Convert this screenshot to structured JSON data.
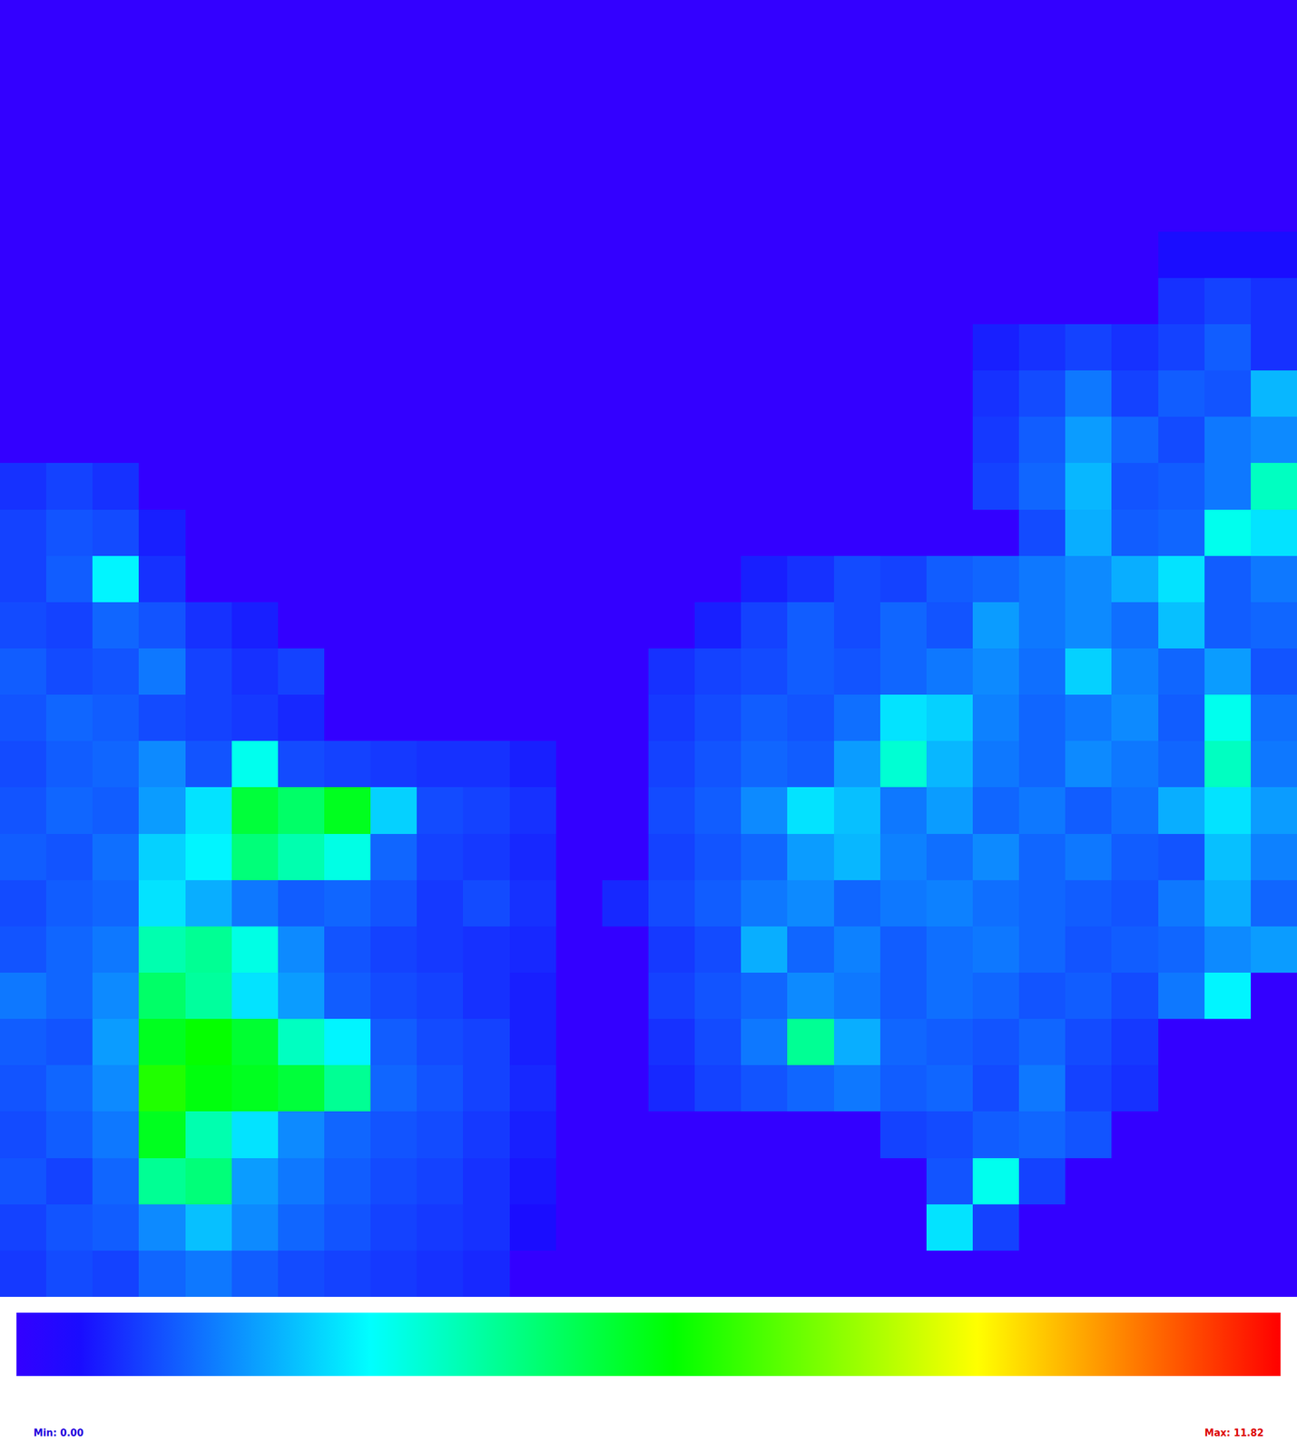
{
  "chart_data": {
    "type": "heatmap",
    "tick_labels": false,
    "colorbar": {
      "range": [
        0,
        11.82
      ],
      "min_label": "Min: 0.00",
      "max_label": "Max: 11.82"
    },
    "z": [
      [
        0,
        0,
        0,
        0,
        0,
        0,
        0,
        0,
        0,
        0,
        0,
        0,
        0,
        0,
        0,
        0,
        0,
        0,
        0,
        0,
        0,
        0,
        0,
        0,
        0,
        0,
        0,
        0
      ],
      [
        0,
        0,
        0,
        0,
        0,
        0,
        0,
        0,
        0,
        0,
        0,
        0,
        0,
        0,
        0,
        0,
        0,
        0,
        0,
        0,
        0,
        0,
        0,
        0,
        0,
        0,
        0,
        0
      ],
      [
        0,
        0,
        0,
        0,
        0,
        0,
        0,
        0,
        0,
        0,
        0,
        0,
        0,
        0,
        0,
        0,
        0,
        0,
        0,
        0,
        0,
        0,
        0,
        0,
        0,
        0,
        0,
        0
      ],
      [
        0,
        0,
        0,
        0,
        0,
        0,
        0,
        0,
        0,
        0,
        0,
        0,
        0,
        0,
        0,
        0,
        0,
        0,
        0,
        0,
        0,
        0,
        0,
        0,
        0,
        0,
        0,
        0
      ],
      [
        0,
        0,
        0,
        0,
        0,
        0,
        0,
        0,
        0,
        0,
        0,
        0,
        0,
        0,
        0,
        0,
        0,
        0,
        0,
        0,
        0,
        0,
        0,
        0,
        0,
        0,
        0,
        0
      ],
      [
        0,
        0,
        0,
        0,
        0,
        0,
        0,
        0,
        0,
        0,
        0,
        0,
        0,
        0,
        0,
        0,
        0,
        0,
        0,
        0,
        0,
        0,
        0,
        0,
        0,
        0.6,
        0.6,
        0.6
      ],
      [
        0,
        0,
        0,
        0,
        0,
        0,
        0,
        0,
        0,
        0,
        0,
        0,
        0,
        0,
        0,
        0,
        0,
        0,
        0,
        0,
        0,
        0,
        0,
        0,
        0,
        1.0,
        1.2,
        1.0
      ],
      [
        0,
        0,
        0,
        0,
        0,
        0,
        0,
        0,
        0,
        0,
        0,
        0,
        0,
        0,
        0,
        0,
        0,
        0,
        0,
        0,
        0,
        0.8,
        1.0,
        1.2,
        1.0,
        1.2,
        1.5,
        1.0
      ],
      [
        0,
        0,
        0,
        0,
        0,
        0,
        0,
        0,
        0,
        0,
        0,
        0,
        0,
        0,
        0,
        0,
        0,
        0,
        0,
        0,
        0,
        1.0,
        1.3,
        1.8,
        1.2,
        1.5,
        1.4,
        2.5
      ],
      [
        0,
        0,
        0,
        0,
        0,
        0,
        0,
        0,
        0,
        0,
        0,
        0,
        0,
        0,
        0,
        0,
        0,
        0,
        0,
        0,
        0,
        1.1,
        1.5,
        2.2,
        1.6,
        1.3,
        1.8,
        2.0
      ],
      [
        1.0,
        1.2,
        1.0,
        0,
        0,
        0,
        0,
        0,
        0,
        0,
        0,
        0,
        0,
        0,
        0,
        0,
        0,
        0,
        0,
        0,
        0,
        1.2,
        1.6,
        2.5,
        1.4,
        1.5,
        1.8,
        4.0
      ],
      [
        1.2,
        1.4,
        1.3,
        0.8,
        0,
        0,
        0,
        0,
        0,
        0,
        0,
        0,
        0,
        0,
        0,
        0,
        0,
        0,
        0,
        0,
        0,
        0,
        1.3,
        2.4,
        1.5,
        1.6,
        3.5,
        3.0
      ],
      [
        1.2,
        1.5,
        3.2,
        1.0,
        0,
        0,
        0,
        0,
        0,
        0,
        0,
        0,
        0,
        0,
        0,
        0,
        0.8,
        1.0,
        1.3,
        1.2,
        1.5,
        1.6,
        1.8,
        2.0,
        2.4,
        3.0,
        1.5,
        1.8
      ],
      [
        1.3,
        1.2,
        1.6,
        1.4,
        1.0,
        0.8,
        0,
        0,
        0,
        0,
        0,
        0,
        0,
        0,
        0,
        0.8,
        1.2,
        1.5,
        1.3,
        1.6,
        1.4,
        2.2,
        1.8,
        2.0,
        1.7,
        2.6,
        1.5,
        1.6
      ],
      [
        1.5,
        1.3,
        1.4,
        1.8,
        1.2,
        1.0,
        1.2,
        0,
        0,
        0,
        0,
        0,
        0,
        0,
        1.0,
        1.2,
        1.3,
        1.5,
        1.4,
        1.6,
        1.8,
        2.0,
        1.7,
        2.8,
        1.9,
        1.6,
        2.2,
        1.4
      ],
      [
        1.4,
        1.6,
        1.5,
        1.3,
        1.2,
        1.1,
        0.9,
        0,
        0,
        0,
        0,
        0,
        0,
        0,
        1.1,
        1.3,
        1.5,
        1.4,
        1.7,
        3.0,
        2.8,
        1.9,
        1.6,
        1.8,
        2.0,
        1.5,
        3.5,
        1.7
      ],
      [
        1.3,
        1.5,
        1.6,
        2.0,
        1.4,
        3.5,
        1.3,
        1.2,
        1.1,
        1.0,
        1.0,
        0.8,
        0,
        0,
        1.2,
        1.4,
        1.6,
        1.5,
        2.2,
        3.8,
        2.5,
        1.8,
        1.6,
        2.0,
        1.8,
        1.6,
        4.0,
        1.8
      ],
      [
        1.4,
        1.6,
        1.5,
        2.2,
        3.0,
        5.5,
        5.0,
        5.8,
        2.8,
        1.3,
        1.2,
        1.0,
        0,
        0,
        1.3,
        1.5,
        2.0,
        3.0,
        2.6,
        1.8,
        2.2,
        1.6,
        1.8,
        1.5,
        1.7,
        2.4,
        3.0,
        2.2
      ],
      [
        1.5,
        1.4,
        1.7,
        2.8,
        3.2,
        4.8,
        4.2,
        3.6,
        1.6,
        1.2,
        1.1,
        0.9,
        0,
        0,
        1.2,
        1.4,
        1.6,
        2.2,
        2.5,
        1.9,
        1.7,
        2.0,
        1.6,
        1.8,
        1.5,
        1.4,
        2.6,
        1.9
      ],
      [
        1.3,
        1.5,
        1.6,
        3.0,
        2.4,
        1.8,
        1.5,
        1.6,
        1.4,
        1.1,
        1.3,
        1.0,
        0,
        0.9,
        1.3,
        1.5,
        1.8,
        2.0,
        1.6,
        1.8,
        1.9,
        1.7,
        1.6,
        1.5,
        1.4,
        1.8,
        2.4,
        1.6
      ],
      [
        1.4,
        1.6,
        1.8,
        4.2,
        4.5,
        3.6,
        2.0,
        1.4,
        1.2,
        1.1,
        1.0,
        0.9,
        0,
        0,
        1.1,
        1.3,
        2.4,
        1.6,
        1.9,
        1.5,
        1.7,
        1.8,
        1.6,
        1.4,
        1.5,
        1.6,
        2.0,
        2.2
      ],
      [
        1.8,
        1.6,
        2.0,
        5.0,
        4.4,
        3.0,
        2.2,
        1.5,
        1.3,
        1.2,
        1.0,
        0.8,
        0,
        0,
        1.2,
        1.4,
        1.6,
        2.0,
        1.8,
        1.5,
        1.7,
        1.6,
        1.4,
        1.5,
        1.3,
        1.8,
        3.2,
        0
      ],
      [
        1.5,
        1.4,
        2.2,
        5.8,
        6.2,
        5.6,
        4.0,
        3.2,
        1.5,
        1.3,
        1.2,
        0.8,
        0,
        0,
        1.0,
        1.3,
        1.8,
        4.5,
        2.4,
        1.6,
        1.5,
        1.4,
        1.6,
        1.3,
        1.1,
        0,
        0,
        0
      ],
      [
        1.4,
        1.6,
        2.0,
        6.5,
        6.0,
        5.8,
        5.5,
        4.5,
        1.6,
        1.4,
        1.2,
        0.9,
        0,
        0,
        0.9,
        1.2,
        1.4,
        1.6,
        1.8,
        1.5,
        1.6,
        1.3,
        1.8,
        1.2,
        1.0,
        0,
        0,
        0
      ],
      [
        1.3,
        1.5,
        1.8,
        5.8,
        4.2,
        3.0,
        2.0,
        1.6,
        1.4,
        1.3,
        1.1,
        0.8,
        0,
        0,
        0,
        0,
        0,
        0,
        0,
        1.2,
        1.3,
        1.5,
        1.6,
        1.4,
        0,
        0,
        0,
        0
      ],
      [
        1.4,
        1.2,
        1.6,
        4.5,
        4.8,
        2.2,
        1.8,
        1.5,
        1.3,
        1.2,
        1.0,
        0.7,
        0,
        0,
        0,
        0,
        0,
        0,
        0,
        0,
        1.4,
        3.5,
        1.2,
        0,
        0,
        0,
        0,
        0
      ],
      [
        1.2,
        1.4,
        1.5,
        2.0,
        2.6,
        2.0,
        1.6,
        1.4,
        1.2,
        1.1,
        1.0,
        0.6,
        0,
        0,
        0,
        0,
        0,
        0,
        0,
        0,
        3.0,
        1.2,
        0,
        0,
        0,
        0,
        0,
        0
      ],
      [
        1.1,
        1.3,
        1.2,
        1.6,
        1.8,
        1.5,
        1.3,
        1.2,
        1.1,
        1.0,
        0.9,
        0,
        0,
        0,
        0,
        0,
        0,
        0,
        0,
        0,
        0,
        0,
        0,
        0,
        0,
        0,
        0,
        0
      ]
    ]
  }
}
